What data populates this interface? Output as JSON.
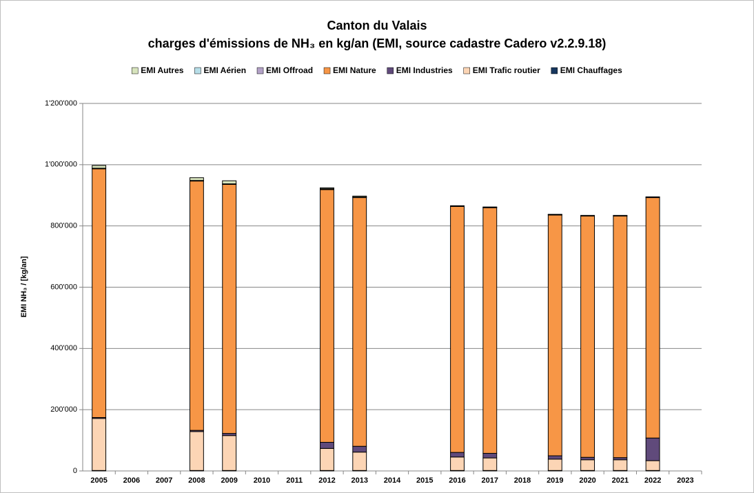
{
  "chart_data": {
    "type": "stacked_bar",
    "title": "Canton du Valais",
    "subtitle": "charges d'émissions de NH₃ en kg/an (EMI, source cadastre Cadero v2.2.9.18)",
    "y_label": "EMI NH₃ / [kg/an]",
    "categories": [
      "2005",
      "2006",
      "2007",
      "2008",
      "2009",
      "2010",
      "2011",
      "2012",
      "2013",
      "2014",
      "2015",
      "2016",
      "2017",
      "2018",
      "2019",
      "2020",
      "2021",
      "2022",
      "2023"
    ],
    "series": [
      {
        "name": "EMI Autres",
        "color": "#d7e4bd",
        "values": [
          9000,
          null,
          null,
          9000,
          10000,
          null,
          null,
          3000,
          3000,
          null,
          null,
          1000,
          1000,
          null,
          1000,
          1000,
          1000,
          1000,
          null
        ]
      },
      {
        "name": "EMI Aérien",
        "color": "#b7dee8",
        "values": [
          1000,
          null,
          null,
          1000,
          1000,
          null,
          null,
          1000,
          1000,
          null,
          null,
          500,
          500,
          null,
          500,
          500,
          500,
          500,
          null
        ]
      },
      {
        "name": "EMI Offroad",
        "color": "#b3a2c7",
        "values": [
          1000,
          null,
          null,
          1000,
          1000,
          null,
          null,
          2000,
          1000,
          null,
          null,
          1000,
          1000,
          null,
          1000,
          500,
          500,
          1000,
          null
        ]
      },
      {
        "name": "EMI Nature",
        "color": "#f79646",
        "values": [
          812000,
          null,
          null,
          814000,
          813000,
          null,
          null,
          825000,
          812000,
          null,
          null,
          803000,
          802000,
          null,
          786000,
          788000,
          789000,
          785000,
          null
        ]
      },
      {
        "name": "EMI Industries",
        "color": "#604a7b",
        "values": [
          3000,
          null,
          null,
          4000,
          7000,
          null,
          null,
          20000,
          19000,
          null,
          null,
          15000,
          15000,
          null,
          11000,
          8000,
          7000,
          74000,
          null
        ]
      },
      {
        "name": "EMI Trafic routier",
        "color": "#fcd5b5",
        "values": [
          170000,
          null,
          null,
          127000,
          114000,
          null,
          null,
          72000,
          60000,
          null,
          null,
          44000,
          41000,
          null,
          37000,
          35000,
          35000,
          32000,
          null
        ]
      },
      {
        "name": "EMI Chauffages",
        "color": "#17375e",
        "values": [
          1500,
          null,
          null,
          1500,
          1500,
          null,
          null,
          1500,
          1500,
          null,
          null,
          1500,
          1500,
          null,
          1500,
          1500,
          1500,
          1500,
          null
        ]
      }
    ],
    "ylim": [
      0,
      1200000
    ],
    "yticks": [
      0,
      {
        "value": 200000,
        "label": "200'000"
      },
      {
        "value": 400000,
        "label": "400'000"
      },
      {
        "value": 600000,
        "label": "600'000"
      },
      {
        "value": 800000,
        "label": "800'000"
      },
      {
        "value": 1000000,
        "label": "1'000'000"
      },
      {
        "value": 1200000,
        "label": "1'200'000"
      }
    ],
    "grid": true,
    "legend": "top"
  }
}
